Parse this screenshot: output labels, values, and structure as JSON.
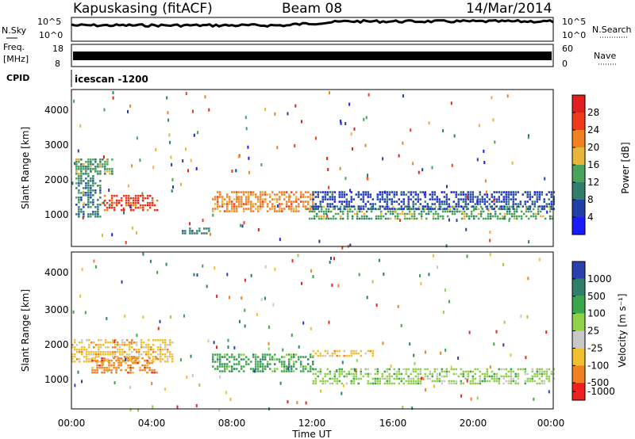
{
  "header": {
    "station": "Kapuskasing (fitACF)",
    "beam": "Beam 08",
    "date": "14/Mar/2014"
  },
  "strips": {
    "nsky_label": "N.Sky",
    "nsky_ticks": [
      "10^5",
      "10^0"
    ],
    "nsearch_label": "N.Search",
    "nsearch_ticks": [
      "10^5",
      "10^0"
    ],
    "freq_label": "Freq.",
    "freq_unit": "[MHz]",
    "freq_ticks": [
      "18",
      "8"
    ],
    "nave_label": "Nave",
    "nave_ticks": [
      "60",
      "0"
    ],
    "cpid_label": "CPID",
    "cpid_value": "icescan -1200"
  },
  "chart_data": [
    {
      "type": "heatmap",
      "panel": "power",
      "ylabel": "Slant Range [km]",
      "ylim": [
        180,
        4500
      ],
      "yticks": [
        "1000",
        "2000",
        "3000",
        "4000"
      ],
      "xlim": [
        "00:00",
        "24:00"
      ],
      "colorbar_label": "Power [dB]",
      "colorbar_ticks": [
        "4",
        "8",
        "12",
        "16",
        "20",
        "24",
        "28"
      ],
      "colors": [
        "#1a1aff",
        "#1f3fa8",
        "#2f7d6a",
        "#49a35a",
        "#e8b43a",
        "#f08020",
        "#ee3a1a",
        "#e02020"
      ],
      "regions": [
        {
          "t": [
            0.2,
            1.5
          ],
          "r": [
            1000,
            2600
          ],
          "v": 10
        },
        {
          "t": [
            1.5,
            4.3
          ],
          "r": [
            1150,
            1600
          ],
          "v": 24
        },
        {
          "t": [
            0.2,
            2.0
          ],
          "r": [
            2200,
            2600
          ],
          "v": 14
        },
        {
          "t": [
            5.5,
            7.0
          ],
          "r": [
            550,
            700
          ],
          "v": 8
        },
        {
          "t": [
            7.0,
            12.0
          ],
          "r": [
            1150,
            1700
          ],
          "v": 22
        },
        {
          "t": [
            11.7,
            24.0
          ],
          "r": [
            950,
            1300
          ],
          "v": 14
        },
        {
          "t": [
            12.0,
            24.0
          ],
          "r": [
            1200,
            1700
          ],
          "v": 6
        }
      ]
    },
    {
      "type": "heatmap",
      "panel": "velocity",
      "ylabel": "Slant Range [km]",
      "ylim": [
        180,
        4500
      ],
      "yticks": [
        "1000",
        "2000",
        "3000",
        "4000"
      ],
      "xlim": [
        "00:00",
        "24:00"
      ],
      "colorbar_label": "Velocity [m s⁻¹]",
      "colorbar_ticks": [
        "1000",
        "500",
        "100",
        "25",
        "-25",
        "-100",
        "-500",
        "-1000"
      ],
      "colors": [
        "#2a3fb0",
        "#2f7d6a",
        "#3aa84a",
        "#8fd24a",
        "#c8c8c8",
        "#f0c030",
        "#f08020",
        "#ee2020"
      ],
      "regions": [
        {
          "t": [
            0.0,
            5.0
          ],
          "r": [
            1500,
            2100
          ],
          "v": "-100"
        },
        {
          "t": [
            1.0,
            4.3
          ],
          "r": [
            1150,
            1600
          ],
          "v": "-500"
        },
        {
          "t": [
            7.0,
            12.0
          ],
          "r": [
            1200,
            1700
          ],
          "v": "100"
        },
        {
          "t": [
            12.0,
            24.0
          ],
          "r": [
            900,
            1300
          ],
          "v": "25"
        },
        {
          "t": [
            12.0,
            15.0
          ],
          "r": [
            1650,
            1800
          ],
          "v": "-100"
        }
      ]
    }
  ],
  "xaxis": {
    "ticks": [
      "00:00",
      "04:00",
      "08:00",
      "12:00",
      "16:00",
      "20:00",
      "00:00"
    ],
    "label": "Time UT"
  }
}
